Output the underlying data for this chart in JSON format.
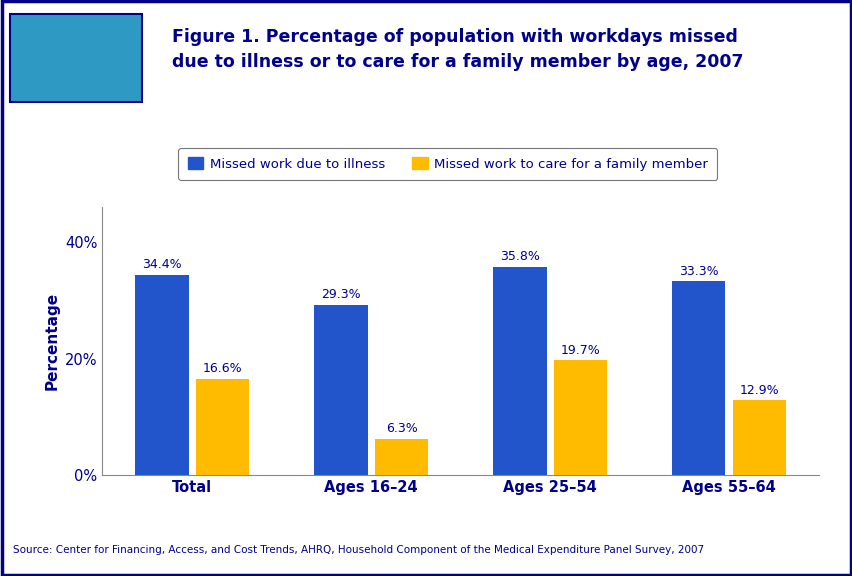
{
  "categories": [
    "Total",
    "Ages 16–24",
    "Ages 25–54",
    "Ages 55–64"
  ],
  "illness_values": [
    34.4,
    29.3,
    35.8,
    33.3
  ],
  "care_values": [
    16.6,
    6.3,
    19.7,
    12.9
  ],
  "illness_labels": [
    "34.4%",
    "29.3%",
    "35.8%",
    "33.3%"
  ],
  "care_labels": [
    "16.6%",
    "6.3%",
    "19.7%",
    "12.9%"
  ],
  "illness_color": "#2255CC",
  "care_color": "#FFBB00",
  "ylabel": "Percentage",
  "yticks": [
    0,
    20,
    40
  ],
  "ytick_labels": [
    "0%",
    "20%",
    "40%"
  ],
  "ylim": [
    0,
    46
  ],
  "legend_illness": "Missed work due to illness",
  "legend_care": "Missed work to care for a family member",
  "title_line1": "Figure 1. Percentage of population with workdays missed",
  "title_line2": "due to illness or to care for a family member by age, 2007",
  "source_text": "Source: Center for Financing, Access, and Cost Trends, AHRQ, Household Component of the Medical Expenditure Panel Survey, 2007",
  "background_color": "#FFFFFF",
  "border_color": "#00008B",
  "title_color": "#00008B",
  "tick_label_color": "#00008B",
  "bar_label_color": "#00008B",
  "bar_width": 0.3,
  "header_bg": "#FFFFFF",
  "separator_color": "#00008B",
  "separator_thickness": 5
}
